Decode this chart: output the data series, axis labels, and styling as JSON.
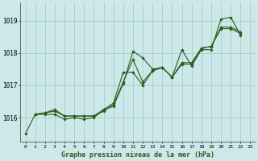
{
  "title": "Graphe pression niveau de la mer (hPa)",
  "background_color": "#cce8e8",
  "grid_color": "#aacccc",
  "line_color": "#2d5a1b",
  "xlim": [
    -0.5,
    23.5
  ],
  "ylim": [
    1015.25,
    1019.55
  ],
  "yticks": [
    1016,
    1017,
    1018,
    1019
  ],
  "xtick_labels": [
    "0",
    "1",
    "2",
    "3",
    "4",
    "5",
    "6",
    "7",
    "8",
    "9",
    "10",
    "11",
    "12",
    "13",
    "14",
    "15",
    "16",
    "17",
    "18",
    "19",
    "20",
    "21",
    "22",
    "23"
  ],
  "series": [
    {
      "x": [
        0,
        1,
        2,
        3,
        4,
        5,
        6,
        7,
        8,
        9,
        10,
        11,
        12,
        13,
        14,
        15,
        16,
        17,
        18,
        19,
        20,
        21,
        22
      ],
      "y": [
        1015.5,
        1016.1,
        1016.1,
        1016.1,
        1015.95,
        1016.0,
        1015.95,
        1016.0,
        1016.25,
        1016.35,
        1017.05,
        1018.05,
        1017.85,
        1017.5,
        1017.55,
        1017.25,
        1018.1,
        1017.6,
        1018.1,
        1018.1,
        1019.05,
        1019.1,
        1018.55
      ]
    },
    {
      "x": [
        1,
        2,
        3,
        4,
        5,
        6,
        7,
        8,
        9,
        10,
        11,
        12,
        13,
        14,
        15,
        16,
        17,
        18,
        19,
        20,
        21,
        22
      ],
      "y": [
        1016.1,
        1016.15,
        1016.2,
        1016.05,
        1016.05,
        1016.05,
        1016.05,
        1016.2,
        1016.4,
        1017.1,
        1017.8,
        1017.1,
        1017.45,
        1017.55,
        1017.25,
        1017.65,
        1017.65,
        1018.15,
        1018.2,
        1018.75,
        1018.75,
        1018.6
      ]
    },
    {
      "x": [
        1,
        2,
        3,
        4,
        5,
        6,
        7,
        8,
        9,
        10,
        11,
        12,
        13,
        14,
        15,
        16,
        17,
        18,
        19,
        20,
        21,
        22
      ],
      "y": [
        1016.1,
        1016.15,
        1016.25,
        1016.05,
        1016.05,
        1016.05,
        1016.05,
        1016.25,
        1016.45,
        1017.4,
        1017.4,
        1017.0,
        1017.45,
        1017.55,
        1017.25,
        1017.7,
        1017.7,
        1018.15,
        1018.2,
        1018.8,
        1018.8,
        1018.65
      ]
    }
  ]
}
